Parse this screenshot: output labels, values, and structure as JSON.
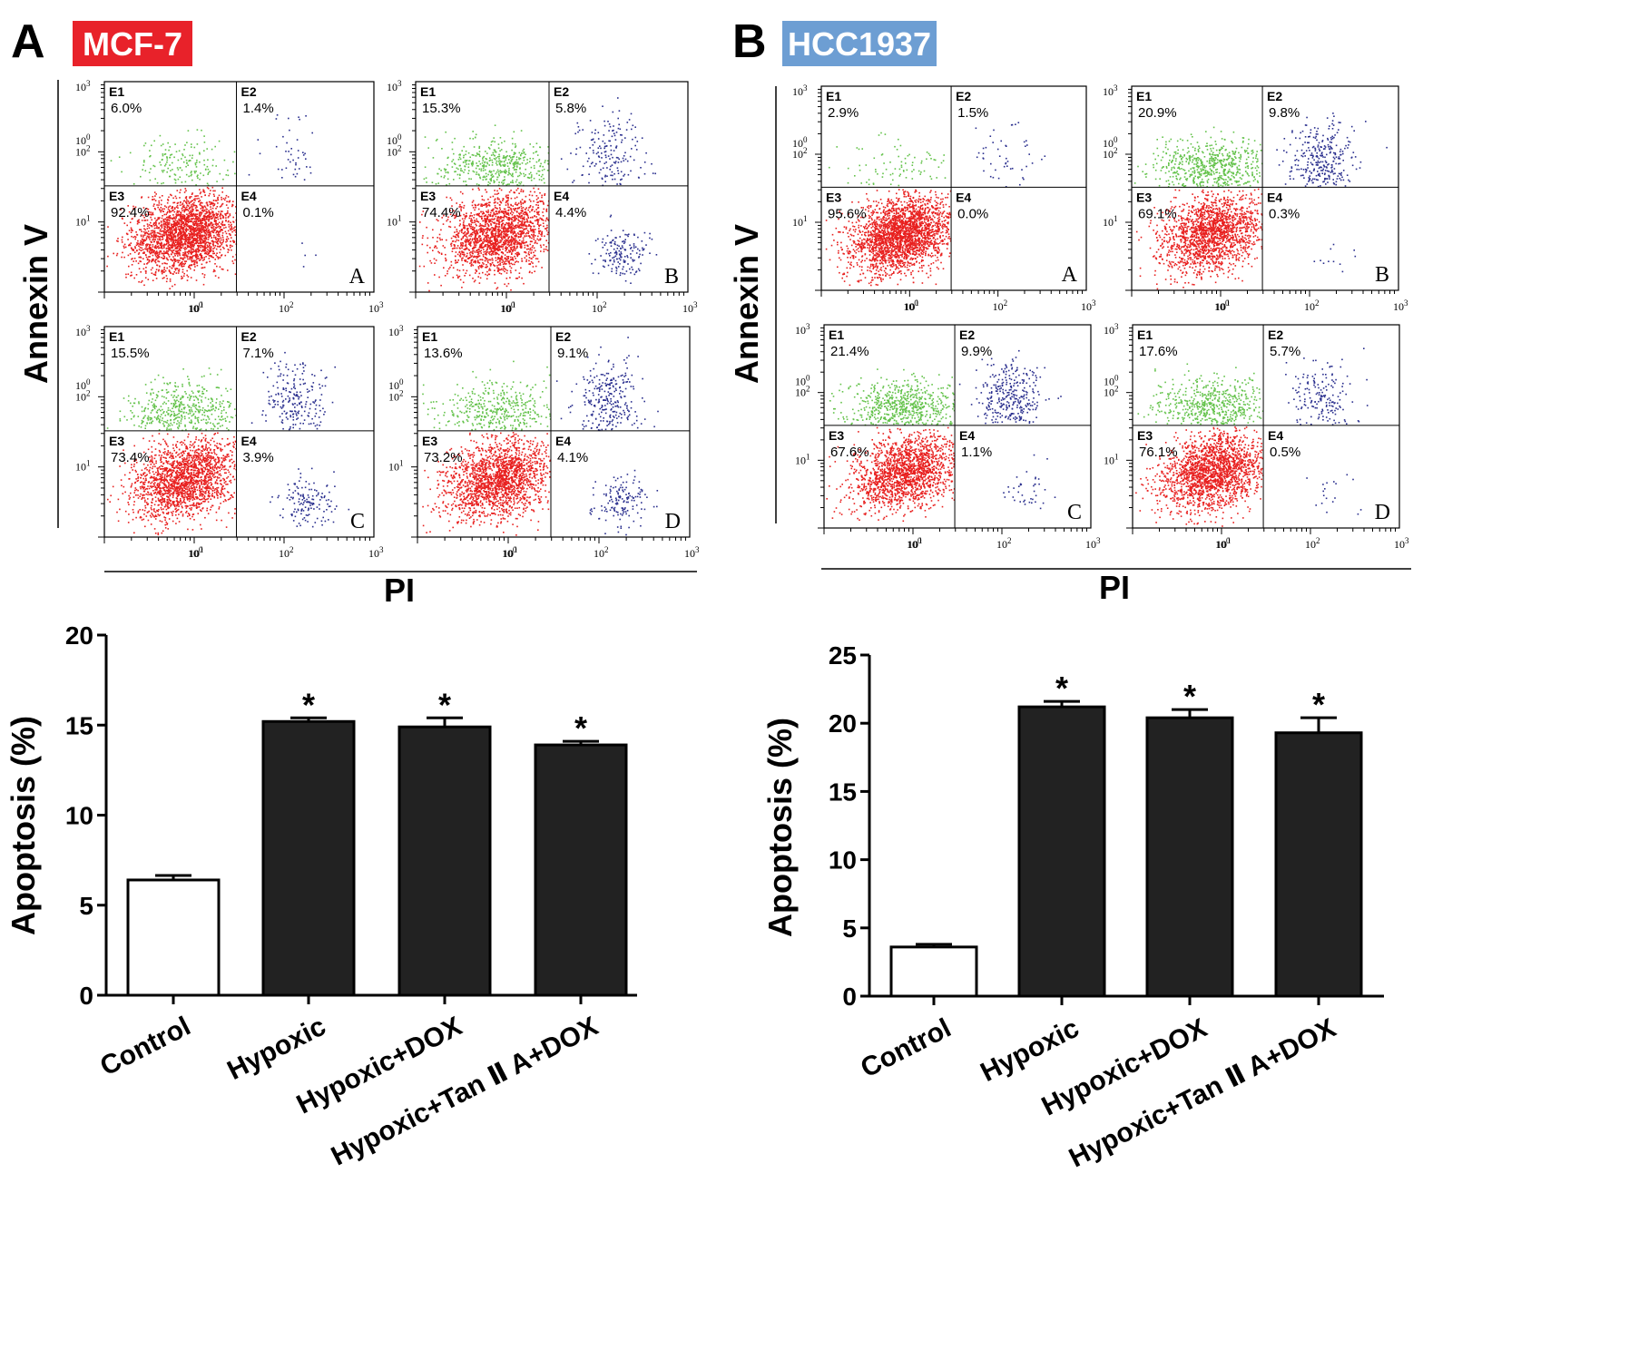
{
  "panels": [
    {
      "letter": "A",
      "cell_line": "MCF-7",
      "cell_color": "#e8222a",
      "flow": {
        "ylabel": "Annexin V",
        "xlabel": "PI",
        "plots": [
          {
            "letter": "A",
            "e1": "6.0%",
            "e2": "1.4%",
            "e3": "92.4%",
            "e4": "0.1%"
          },
          {
            "letter": "B",
            "e1": "15.3%",
            "e2": "5.8%",
            "e3": "74.4%",
            "e4": "4.4%"
          },
          {
            "letter": "C",
            "e1": "15.5%",
            "e2": "7.1%",
            "e3": "73.4%",
            "e4": "3.9%"
          },
          {
            "letter": "D",
            "e1": "13.6%",
            "e2": "9.1%",
            "e3": "73.2%",
            "e4": "4.1%"
          }
        ]
      }
    },
    {
      "letter": "B",
      "cell_line": "HCC1937",
      "cell_color": "#6d9ed3",
      "flow": {
        "ylabel": "Annexin V",
        "xlabel": "PI",
        "plots": [
          {
            "letter": "A",
            "e1": "2.9%",
            "e2": "1.5%",
            "e3": "95.6%",
            "e4": "0.0%"
          },
          {
            "letter": "B",
            "e1": "20.9%",
            "e2": "9.8%",
            "e3": "69.1%",
            "e4": "0.3%"
          },
          {
            "letter": "C",
            "e1": "21.4%",
            "e2": "9.9%",
            "e3": "67.6%",
            "e4": "1.1%"
          },
          {
            "letter": "D",
            "e1": "17.6%",
            "e2": "5.7%",
            "e3": "76.1%",
            "e4": "0.5%"
          }
        ]
      }
    }
  ],
  "flow_axis": {
    "tick_base": "10",
    "tick_exponents": [
      "0",
      "1",
      "2",
      "3"
    ],
    "quadrant_names": [
      "E1",
      "E2",
      "E3",
      "E4"
    ]
  },
  "chart_data": [
    {
      "type": "bar",
      "panel": "A",
      "categories": [
        "Control",
        "Hypoxic",
        "Hypoxic+DOX",
        "Hypoxic+Tan Ⅱ A+DOX"
      ],
      "values": [
        6.4,
        15.2,
        14.9,
        13.9
      ],
      "errors": [
        0.25,
        0.2,
        0.5,
        0.2
      ],
      "significance": [
        "",
        "*",
        "*",
        "*"
      ],
      "bar_colors": [
        "#ffffff",
        "#222222",
        "#222222",
        "#222222"
      ],
      "ylabel": "Apoptosis (%)",
      "xlabel": "",
      "ylim": [
        0,
        20
      ],
      "yticks": [
        0,
        5,
        10,
        15,
        20
      ]
    },
    {
      "type": "bar",
      "panel": "B",
      "categories": [
        "Control",
        "Hypoxic",
        "Hypoxic+DOX",
        "Hypoxic+Tan Ⅱ A+DOX"
      ],
      "values": [
        3.6,
        21.2,
        20.4,
        19.3
      ],
      "errors": [
        0.2,
        0.4,
        0.6,
        1.1
      ],
      "significance": [
        "",
        "*",
        "*",
        "*"
      ],
      "bar_colors": [
        "#ffffff",
        "#222222",
        "#222222",
        "#222222"
      ],
      "ylabel": "Apoptosis (%)",
      "xlabel": "",
      "ylim": [
        0,
        25
      ],
      "yticks": [
        0,
        5,
        10,
        15,
        20,
        25
      ]
    }
  ]
}
